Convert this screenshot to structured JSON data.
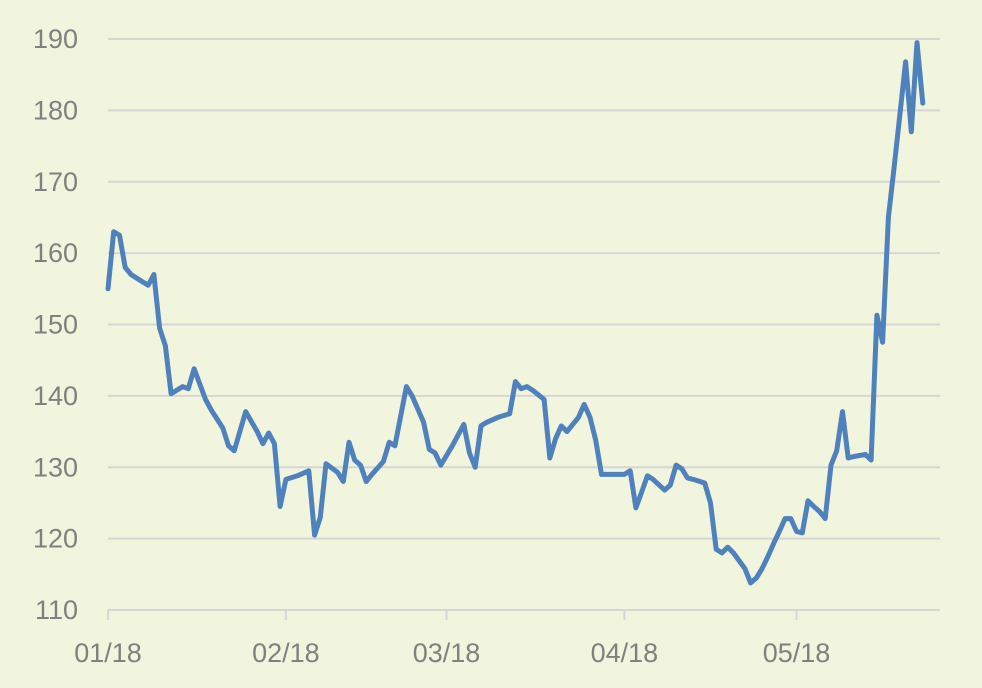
{
  "chart_data": {
    "type": "line",
    "title": "",
    "xlabel": "",
    "ylabel": "",
    "ylim": [
      110,
      190
    ],
    "y_ticks": [
      "110",
      "120",
      "130",
      "140",
      "150",
      "160",
      "170",
      "180",
      "190"
    ],
    "x_ticks": [
      {
        "label": "01/18",
        "x": 0
      },
      {
        "label": "02/18",
        "x": 31
      },
      {
        "label": "03/18",
        "x": 59
      },
      {
        "label": "04/18",
        "x": 90
      },
      {
        "label": "05/18",
        "x": 120
      }
    ],
    "xlim": [
      0,
      145
    ],
    "grid": true,
    "colors": {
      "series": "#4f81bd",
      "grid": "#d6d6d6",
      "tick_text": "#808080",
      "background": "#f1f5dd"
    },
    "series": [
      {
        "name": "",
        "points": [
          [
            0,
            155
          ],
          [
            1,
            163
          ],
          [
            2,
            162.5
          ],
          [
            3,
            158
          ],
          [
            4,
            157
          ],
          [
            6,
            156
          ],
          [
            7,
            155.5
          ],
          [
            8,
            157
          ],
          [
            9,
            149.5
          ],
          [
            10,
            147
          ],
          [
            11,
            140.3
          ],
          [
            13,
            141.3
          ],
          [
            14,
            141
          ],
          [
            15,
            143.8
          ],
          [
            17,
            139.5
          ],
          [
            18,
            138
          ],
          [
            20,
            135.5
          ],
          [
            21,
            133
          ],
          [
            22,
            132.3
          ],
          [
            24,
            137.8
          ],
          [
            26,
            135
          ],
          [
            27,
            133.3
          ],
          [
            28,
            134.8
          ],
          [
            29,
            133.3
          ],
          [
            30,
            124.5
          ],
          [
            31,
            128.3
          ],
          [
            33,
            128.8
          ],
          [
            35,
            129.5
          ],
          [
            36,
            120.5
          ],
          [
            37,
            123
          ],
          [
            38,
            130.5
          ],
          [
            40,
            129.3
          ],
          [
            41,
            128
          ],
          [
            42,
            133.5
          ],
          [
            43,
            131
          ],
          [
            44,
            130.3
          ],
          [
            45,
            128
          ],
          [
            46,
            129
          ],
          [
            48,
            130.8
          ],
          [
            49,
            133.5
          ],
          [
            50,
            133
          ],
          [
            52,
            141.3
          ],
          [
            53,
            140
          ],
          [
            55,
            136.3
          ],
          [
            56,
            132.5
          ],
          [
            57,
            132
          ],
          [
            58,
            130.3
          ],
          [
            60,
            133
          ],
          [
            62,
            136
          ],
          [
            63,
            132
          ],
          [
            64,
            130
          ],
          [
            65,
            135.8
          ],
          [
            66,
            136.3
          ],
          [
            68,
            137
          ],
          [
            70,
            137.5
          ],
          [
            71,
            142
          ],
          [
            72,
            141
          ],
          [
            73,
            141.3
          ],
          [
            74,
            140.8
          ],
          [
            76,
            139.5
          ],
          [
            77,
            131.3
          ],
          [
            78,
            134
          ],
          [
            79,
            135.8
          ],
          [
            80,
            135
          ],
          [
            82,
            137
          ],
          [
            83,
            138.8
          ],
          [
            84,
            137
          ],
          [
            85,
            133.8
          ],
          [
            86,
            129
          ],
          [
            88,
            129
          ],
          [
            89,
            129
          ],
          [
            90,
            129
          ],
          [
            91,
            129.5
          ],
          [
            92,
            124.3
          ],
          [
            93,
            126.5
          ],
          [
            94,
            128.8
          ],
          [
            95,
            128.3
          ],
          [
            97,
            126.8
          ],
          [
            98,
            127.5
          ],
          [
            99,
            130.3
          ],
          [
            100,
            129.8
          ],
          [
            101,
            128.5
          ],
          [
            102,
            128.3
          ],
          [
            104,
            127.8
          ],
          [
            105,
            125
          ],
          [
            106,
            118.5
          ],
          [
            107,
            118
          ],
          [
            108,
            118.8
          ],
          [
            109,
            118
          ],
          [
            111,
            115.8
          ],
          [
            112,
            113.8
          ],
          [
            113,
            114.5
          ],
          [
            114,
            115.8
          ],
          [
            115,
            117.5
          ],
          [
            116,
            119.3
          ],
          [
            117,
            121
          ],
          [
            118,
            122.8
          ],
          [
            119,
            122.8
          ],
          [
            120,
            121
          ],
          [
            121,
            120.8
          ],
          [
            122,
            125.3
          ],
          [
            123,
            124.5
          ],
          [
            124,
            123.8
          ],
          [
            125,
            122.8
          ],
          [
            126,
            130.3
          ],
          [
            127,
            132.3
          ],
          [
            128,
            137.8
          ],
          [
            129,
            131.3
          ],
          [
            130,
            131.5
          ],
          [
            132,
            131.8
          ],
          [
            133,
            131
          ],
          [
            134,
            151.3
          ],
          [
            135,
            147.5
          ],
          [
            136,
            165
          ],
          [
            137,
            172
          ],
          [
            138,
            179.3
          ],
          [
            139,
            186.8
          ],
          [
            140,
            177
          ],
          [
            141,
            189.5
          ],
          [
            142,
            181
          ]
        ]
      }
    ]
  }
}
